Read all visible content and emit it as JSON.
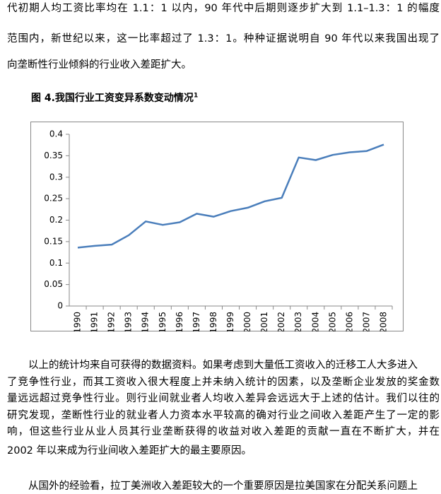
{
  "paragraphs": [
    {
      "lines": [
        "代初期人均工资比率均在 1.1：1 以内，90 年代中后期则逐步扩大到 1.1–1.3：1 的幅度",
        "范围内，新世纪以来，这一比率超过了 1.3：1。种种证据说明自 90 年代以来我国出现了",
        "向垄断性行业倾斜的行业收入差距扩大。"
      ]
    },
    {
      "lines": [
        "以上的统计均来自可获得的数据资料。如果考虑到大量低工资收入的迁移工人大多进入",
        "了竞争性行业，而其工资收入很大程度上并未纳入统计的因素，以及垄断企业发放的奖金数",
        "量远远超过竞争性行业。则行业间就业者人均收入差异会远远大于上述的估计。我们以往的",
        "研究发现，垄断性行业的就业者人力资本水平较高的确对行业之间收入差距产生了一定的影",
        "响，但这些行业从业人员其行业垄断获得的收益对收入差距的贡献一直在不断扩大，并在",
        "2002 年以来成为行业间收入差距扩大的最主要原因。"
      ]
    },
    {
      "lines": [
        "从国外的经验看，拉丁美洲收入差距较大的一个重要原因是拉美国家在分配关系问题上"
      ]
    }
  ],
  "figure": {
    "caption": "图 4.我国行业工资变异系数变动情况",
    "footnote_ref": "1"
  },
  "chart_data": {
    "type": "line",
    "categories": [
      "1990",
      "1991",
      "1992",
      "1993",
      "1994",
      "1995",
      "1996",
      "1997",
      "1998",
      "1999",
      "2000",
      "2001",
      "2002",
      "2003",
      "2004",
      "2005",
      "2006",
      "2007",
      "2008"
    ],
    "series": [
      {
        "color": "#4a7ebb",
        "values": [
          0.136,
          0.14,
          0.143,
          0.165,
          0.197,
          0.189,
          0.195,
          0.215,
          0.208,
          0.221,
          0.229,
          0.244,
          0.252,
          0.346,
          0.34,
          0.352,
          0.358,
          0.361,
          0.376
        ]
      }
    ],
    "ylim": [
      0,
      0.4
    ],
    "yticks": [
      0,
      0.05,
      0.1,
      0.15,
      0.2,
      0.25,
      0.3,
      0.35,
      0.4
    ],
    "grid": false
  }
}
